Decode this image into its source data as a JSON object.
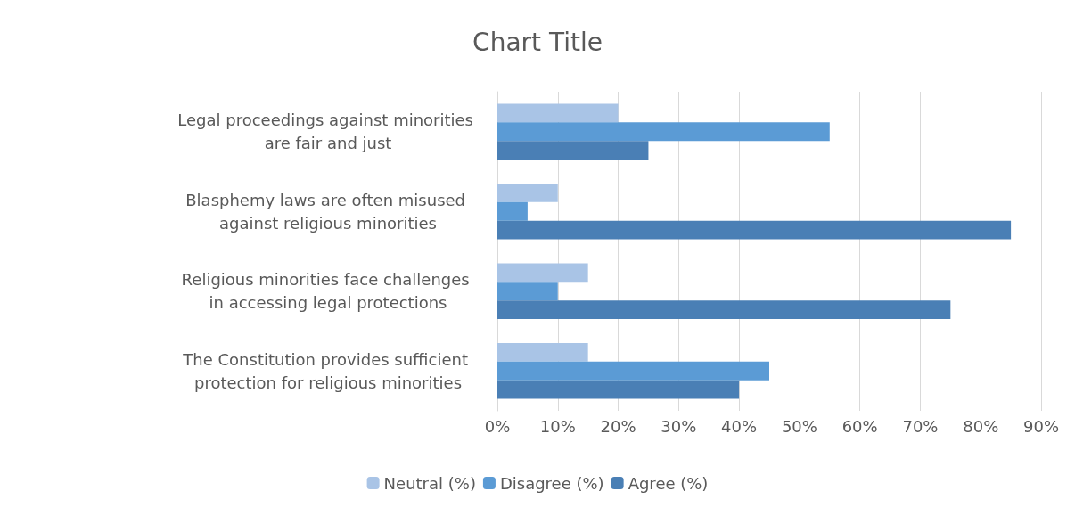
{
  "chart_data": {
    "type": "bar",
    "orientation": "horizontal",
    "title": "Chart Title",
    "categories": [
      "Legal proceedings against minorities are fair and just",
      "Blasphemy laws are often misused against religious minorities",
      "Religious minorities face challenges in accessing legal protections",
      "The Constitution provides sufficient protection for religious minorities"
    ],
    "series": [
      {
        "name": "Neutral (%)",
        "color": "#a9c4e6",
        "values": [
          20,
          10,
          15,
          15
        ]
      },
      {
        "name": "Disagree (%)",
        "color": "#5b9bd5",
        "values": [
          55,
          5,
          10,
          45
        ]
      },
      {
        "name": "Agree (%)",
        "color": "#4a7fb5",
        "values": [
          25,
          85,
          75,
          40
        ]
      }
    ],
    "xlim": [
      0,
      90
    ],
    "xticks": [
      {
        "value": 0,
        "label": "0%"
      },
      {
        "value": 10,
        "label": "10%"
      },
      {
        "value": 20,
        "label": "20%"
      },
      {
        "value": 30,
        "label": "30%"
      },
      {
        "value": 40,
        "label": "40%"
      },
      {
        "value": 50,
        "label": "50%"
      },
      {
        "value": 60,
        "label": "60%"
      },
      {
        "value": 70,
        "label": "70%"
      },
      {
        "value": 80,
        "label": "80%"
      },
      {
        "value": 90,
        "label": "90%"
      }
    ],
    "grid": "x",
    "legend": "bottom"
  }
}
